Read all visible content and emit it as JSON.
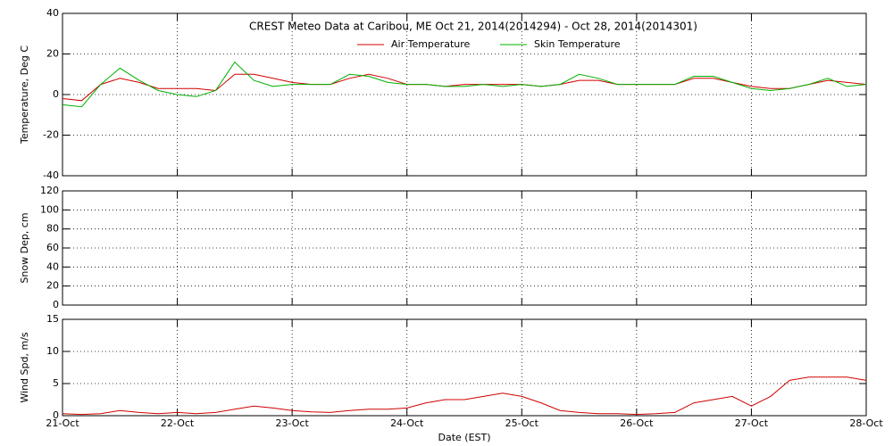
{
  "chart_data": [
    {
      "type": "line",
      "title": "CREST Meteo Data at Caribou, ME   Oct 21, 2014(2014294) - Oct 28, 2014(2014301)",
      "ylabel": "Temperature, Deg C",
      "xlim": [
        0,
        7
      ],
      "xticks": [
        0,
        1,
        2,
        3,
        4,
        5,
        6,
        7
      ],
      "ylim": [
        -40,
        40
      ],
      "yticks": [
        -40,
        -20,
        0,
        20,
        40
      ],
      "grid": true,
      "x": [
        0,
        0.167,
        0.333,
        0.5,
        0.667,
        0.833,
        1,
        1.167,
        1.333,
        1.5,
        1.667,
        1.833,
        2,
        2.167,
        2.333,
        2.5,
        2.667,
        2.833,
        3,
        3.167,
        3.333,
        3.5,
        3.667,
        3.833,
        4,
        4.167,
        4.333,
        4.5,
        4.667,
        4.833,
        5,
        5.167,
        5.333,
        5.5,
        5.667,
        5.833,
        6,
        6.167,
        6.333,
        6.5,
        6.667,
        6.833,
        7
      ],
      "series": [
        {
          "name": "Air Temperature",
          "color": "#d00000",
          "values": [
            -2,
            -3,
            5,
            8,
            6,
            3,
            3,
            3,
            2,
            10,
            10,
            8,
            6,
            5,
            5,
            8,
            10,
            8,
            5,
            5,
            4,
            5,
            5,
            5,
            5,
            4,
            5,
            7,
            7,
            5,
            5,
            5,
            5,
            8,
            8,
            6,
            4,
            3,
            3,
            5,
            7,
            6,
            5
          ]
        },
        {
          "name": "Skin Temperature",
          "color": "#00b000",
          "values": [
            -5,
            -6,
            5,
            13,
            7,
            2,
            0,
            -1,
            2,
            16,
            7,
            4,
            5,
            5,
            5,
            10,
            9,
            6,
            5,
            5,
            4,
            4,
            5,
            4,
            5,
            4,
            5,
            10,
            8,
            5,
            5,
            5,
            5,
            9,
            9,
            6,
            3,
            2,
            3,
            5,
            8,
            4,
            5
          ]
        }
      ]
    },
    {
      "type": "line",
      "ylabel": "Snow Dep, cm",
      "xlim": [
        0,
        7
      ],
      "xticks": [
        0,
        1,
        2,
        3,
        4,
        5,
        6,
        7
      ],
      "ylim": [
        0,
        120
      ],
      "yticks": [
        0,
        20,
        40,
        60,
        80,
        100,
        120
      ],
      "grid": true,
      "series": []
    },
    {
      "type": "line",
      "ylabel": "Wind Spd, m/s",
      "xlabel": "Date (EST)",
      "xlim": [
        0,
        7
      ],
      "xticks": [
        {
          "value": 0,
          "label": "21-Oct"
        },
        {
          "value": 1,
          "label": "22-Oct"
        },
        {
          "value": 2,
          "label": "23-Oct"
        },
        {
          "value": 3,
          "label": "24-Oct"
        },
        {
          "value": 4,
          "label": "25-Oct"
        },
        {
          "value": 5,
          "label": "26-Oct"
        },
        {
          "value": 6,
          "label": "27-Oct"
        },
        {
          "value": 7,
          "label": "28-Oct"
        }
      ],
      "ylim": [
        0,
        15
      ],
      "yticks": [
        0,
        5,
        10,
        15
      ],
      "grid": true,
      "x": [
        0,
        0.167,
        0.333,
        0.5,
        0.667,
        0.833,
        1,
        1.167,
        1.333,
        1.5,
        1.667,
        1.833,
        2,
        2.167,
        2.333,
        2.5,
        2.667,
        2.833,
        3,
        3.167,
        3.333,
        3.5,
        3.667,
        3.833,
        4,
        4.167,
        4.333,
        4.5,
        4.667,
        4.833,
        5,
        5.167,
        5.333,
        5.5,
        5.667,
        5.833,
        6,
        6.167,
        6.333,
        6.5,
        6.667,
        6.833,
        7
      ],
      "series": [
        {
          "name": "Wind Speed",
          "color": "#d00000",
          "values": [
            0.3,
            0.2,
            0.3,
            0.8,
            0.5,
            0.3,
            0.5,
            0.3,
            0.5,
            1.0,
            1.5,
            1.2,
            0.8,
            0.6,
            0.5,
            0.8,
            1.0,
            1.0,
            1.2,
            2.0,
            2.5,
            2.5,
            3.0,
            3.5,
            3.0,
            2.0,
            0.8,
            0.5,
            0.3,
            0.3,
            0.2,
            0.3,
            0.5,
            2.0,
            2.5,
            3.0,
            1.5,
            3.0,
            5.5,
            6.0,
            6.0,
            6.0,
            5.5
          ]
        }
      ]
    }
  ]
}
